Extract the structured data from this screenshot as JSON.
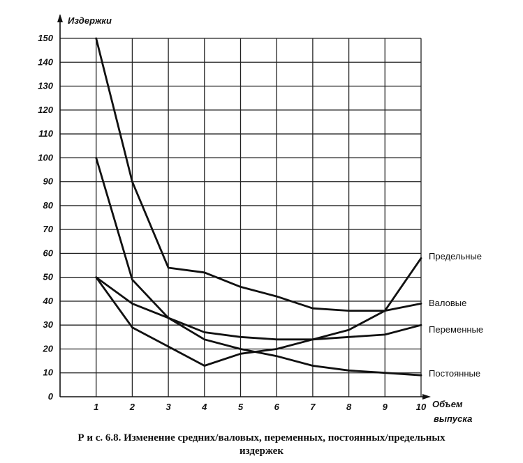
{
  "chart_data": {
    "type": "line",
    "ylabel": "Издержки",
    "xlabel_lines": [
      "Объем",
      "выпуска"
    ],
    "x": [
      1,
      2,
      3,
      4,
      5,
      6,
      7,
      8,
      9,
      10
    ],
    "xlim": [
      0,
      10
    ],
    "ylim": [
      0,
      150
    ],
    "yticks": [
      0,
      10,
      20,
      30,
      40,
      50,
      60,
      70,
      80,
      90,
      100,
      110,
      120,
      130,
      140,
      150
    ],
    "grid": true,
    "series": [
      {
        "name": "Предельные",
        "values": [
          50,
          29,
          21,
          13,
          18,
          20,
          24,
          28,
          36,
          58
        ]
      },
      {
        "name": "Валовые",
        "values": [
          150,
          90,
          54,
          52,
          46,
          42,
          37,
          36,
          36,
          39
        ]
      },
      {
        "name": "Переменные",
        "values": [
          50,
          39,
          33,
          27,
          25,
          24,
          24,
          25,
          26,
          30
        ]
      },
      {
        "name": "Постоянные",
        "values": [
          100,
          49,
          33,
          24,
          20,
          17,
          13,
          11,
          10,
          9
        ]
      }
    ]
  },
  "caption": {
    "line1": "Р и с.  6.8.  Изменение  средних/валовых,  переменных,  постоянных/предельных",
    "line2": "издержек"
  }
}
